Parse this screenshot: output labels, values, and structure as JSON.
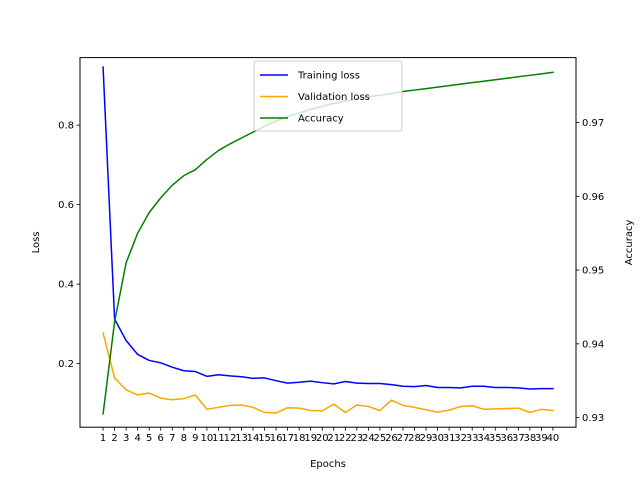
{
  "chart_data": {
    "type": "line",
    "xlabel": "Epochs",
    "ylabel_left": "Loss",
    "ylabel_right": "Accuracy",
    "x": [
      1,
      2,
      3,
      4,
      5,
      6,
      7,
      8,
      9,
      10,
      11,
      12,
      13,
      14,
      15,
      16,
      17,
      18,
      19,
      20,
      21,
      22,
      23,
      24,
      25,
      26,
      27,
      28,
      29,
      30,
      31,
      32,
      33,
      34,
      35,
      36,
      37,
      38,
      39,
      40
    ],
    "left_axis": {
      "ylim": [
        0.04,
        0.97
      ],
      "ticks": [
        0.2,
        0.4,
        0.6,
        0.8
      ]
    },
    "right_axis": {
      "ylim": [
        0.9287,
        0.9788
      ],
      "ticks": [
        0.93,
        0.94,
        0.95,
        0.96,
        0.97
      ]
    },
    "series": [
      {
        "name": "Training loss",
        "axis": "left",
        "color": "#0000ff",
        "values": [
          0.946,
          0.312,
          0.258,
          0.223,
          0.208,
          0.202,
          0.191,
          0.182,
          0.18,
          0.168,
          0.172,
          0.169,
          0.167,
          0.163,
          0.164,
          0.157,
          0.151,
          0.153,
          0.156,
          0.152,
          0.149,
          0.155,
          0.151,
          0.15,
          0.15,
          0.147,
          0.143,
          0.142,
          0.145,
          0.14,
          0.14,
          0.139,
          0.143,
          0.143,
          0.14,
          0.14,
          0.139,
          0.136,
          0.137,
          0.137
        ]
      },
      {
        "name": "Validation loss",
        "axis": "left",
        "color": "#ffa500",
        "values": [
          0.277,
          0.164,
          0.134,
          0.121,
          0.126,
          0.113,
          0.109,
          0.112,
          0.121,
          0.085,
          0.09,
          0.095,
          0.096,
          0.09,
          0.077,
          0.076,
          0.089,
          0.088,
          0.082,
          0.081,
          0.098,
          0.077,
          0.096,
          0.092,
          0.082,
          0.108,
          0.095,
          0.09,
          0.084,
          0.078,
          0.083,
          0.092,
          0.094,
          0.085,
          0.086,
          0.087,
          0.088,
          0.077,
          0.085,
          0.082
        ]
      },
      {
        "name": "Accuracy",
        "axis": "right",
        "color": "#008000",
        "values": [
          0.9305,
          0.943,
          0.951,
          0.955,
          0.9578,
          0.9598,
          0.9615,
          0.9628,
          0.9636,
          0.965,
          0.9662,
          0.9671,
          0.9679,
          0.9687,
          0.9695,
          0.9702,
          0.9708,
          0.9713,
          0.9718,
          0.9722,
          0.9726,
          0.9729,
          0.9732,
          0.9735,
          0.9737,
          0.9739,
          0.9742,
          0.9744,
          0.9746,
          0.9748,
          0.975,
          0.9752,
          0.9754,
          0.9756,
          0.9758,
          0.976,
          0.9762,
          0.9764,
          0.9766,
          0.9768
        ]
      }
    ],
    "grid": false,
    "legend_position": "top-center"
  }
}
